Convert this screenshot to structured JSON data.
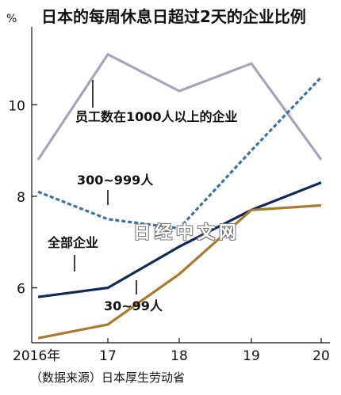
{
  "chart_data": {
    "type": "line",
    "title": "日本的每周休息日超过2天的企业比例",
    "unit_label": "%",
    "x": [
      "2016年",
      "17",
      "18",
      "19",
      "20"
    ],
    "ylim": [
      4.8,
      11.7
    ],
    "yticks": [
      "6",
      "8",
      "10"
    ],
    "grid": false,
    "legend": "inline labels",
    "series": [
      {
        "name": "员工数在1000人以上的企业",
        "color": "#a8a3b9",
        "dash": false,
        "values": [
          8.8,
          11.1,
          10.3,
          10.9,
          8.8
        ]
      },
      {
        "name": "300~999人",
        "color": "#3b72a6",
        "dash": true,
        "values": [
          8.1,
          7.5,
          7.3,
          9.0,
          10.6
        ]
      },
      {
        "name": "全部企业",
        "color": "#0f2a56",
        "dash": false,
        "values": [
          5.8,
          6.0,
          6.9,
          7.7,
          8.3
        ]
      },
      {
        "name": "30~99人",
        "color": "#a97a2e",
        "dash": false,
        "values": [
          4.9,
          5.2,
          6.3,
          7.7,
          7.8
        ]
      }
    ],
    "source": "（数据来源）日本厚生劳动省",
    "watermark": "日经中文网"
  }
}
